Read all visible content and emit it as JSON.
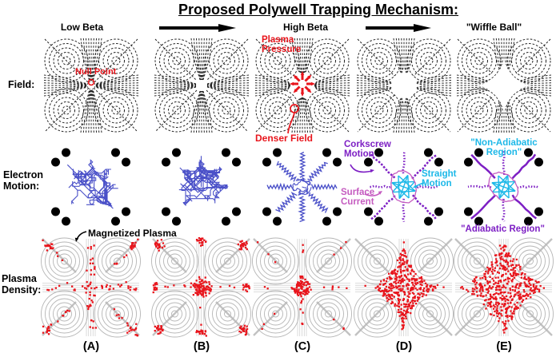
{
  "title": "Proposed Polywell Trapping Mechanism:",
  "stages": {
    "low_beta": "Low Beta",
    "high_beta": "High Beta",
    "wiffle_ball": "\"Wiffle Ball\""
  },
  "row_labels": {
    "field": "Field:",
    "electron": "Electron Motion:",
    "plasma": "Plasma Density:"
  },
  "panels": [
    {
      "letter": "(A)",
      "field": "converged-null",
      "electron": "dense-tangle",
      "plasma": "sparse-cross"
    },
    {
      "letter": "(B)",
      "field": "small-gap",
      "electron": "dense-tangle",
      "plasma": "clusters"
    },
    {
      "letter": "(C)",
      "field": "pressure-push",
      "electron": "thin-spokes",
      "plasma": "small-core"
    },
    {
      "letter": "(D)",
      "field": "star-void",
      "electron": "wiffle-spokes",
      "plasma": "star-core"
    },
    {
      "letter": "(E)",
      "field": "large-star-void",
      "electron": "wiffle-spokes",
      "plasma": "large-star-core"
    }
  ],
  "annotations": {
    "null_point": "Null Point",
    "plasma_pressure": "Plasma Pressure",
    "denser_field": "Denser Field",
    "magnetized_plasma": "Magnetized Plasma",
    "corkscrew_motion": "Corkscrew Motion",
    "straight_motion": "Straight Motion",
    "surface_current": "Surface Current",
    "non_adiabatic_region": "\"Non-Adiabatic Region\"",
    "adiabatic_region": "\"Adiabatic Region\""
  },
  "colors": {
    "red": "#e8151c",
    "electron_blue": "#4a50c8",
    "purple": "#7d1fc4",
    "cyan": "#1cb8e8",
    "magenta": "#c55bc0",
    "field_lines": "#242424",
    "contours": "#b5b5b5",
    "black": "#000000"
  }
}
